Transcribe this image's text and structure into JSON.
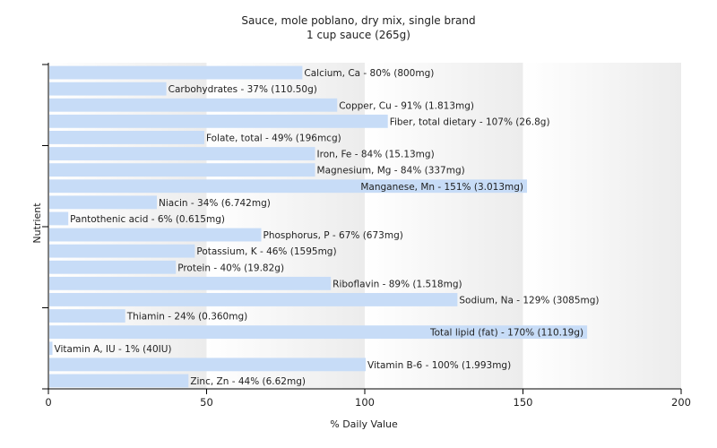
{
  "chart_data": {
    "type": "bar",
    "orientation": "horizontal",
    "title": "Sauce, mole poblano, dry mix, single brand",
    "subtitle": "1 cup sauce (265g)",
    "xlabel": "% Daily Value",
    "ylabel": "Nutrient",
    "xlim": [
      0,
      200
    ],
    "xticks": [
      "0",
      "50",
      "100",
      "150",
      "200"
    ],
    "grid": "vertical gradient bands",
    "colors": {
      "bar": "#c7dcf7",
      "axis": "#000000",
      "text": "#222222"
    },
    "categories": [
      "Calcium, Ca",
      "Carbohydrates",
      "Copper, Cu",
      "Fiber, total dietary",
      "Folate, total",
      "Iron, Fe",
      "Magnesium, Mg",
      "Manganese, Mn",
      "Niacin",
      "Pantothenic acid",
      "Phosphorus, P",
      "Potassium, K",
      "Protein",
      "Riboflavin",
      "Sodium, Na",
      "Thiamin",
      "Total lipid (fat)",
      "Vitamin A, IU",
      "Vitamin B-6",
      "Zinc, Zn"
    ],
    "values": [
      80,
      37,
      91,
      107,
      49,
      84,
      84,
      151,
      34,
      6,
      67,
      46,
      40,
      89,
      129,
      24,
      170,
      1,
      100,
      44
    ],
    "labels": [
      "Calcium, Ca - 80% (800mg)",
      "Carbohydrates - 37% (110.50g)",
      "Copper, Cu - 91% (1.813mg)",
      "Fiber, total dietary - 107% (26.8g)",
      "Folate, total - 49% (196mcg)",
      "Iron, Fe - 84% (15.13mg)",
      "Magnesium, Mg - 84% (337mg)",
      "Manganese, Mn - 151% (3.013mg)",
      "Niacin - 34% (6.742mg)",
      "Pantothenic acid - 6% (0.615mg)",
      "Phosphorus, P - 67% (673mg)",
      "Potassium, K - 46% (1595mg)",
      "Protein - 40% (19.82g)",
      "Riboflavin - 89% (1.518mg)",
      "Sodium, Na - 129% (3085mg)",
      "Thiamin - 24% (0.360mg)",
      "Total lipid (fat) - 170% (110.19g)",
      "Vitamin A, IU - 1% (40IU)",
      "Vitamin B-6 - 100% (1.993mg)",
      "Zinc, Zn - 44% (6.62mg)"
    ]
  }
}
